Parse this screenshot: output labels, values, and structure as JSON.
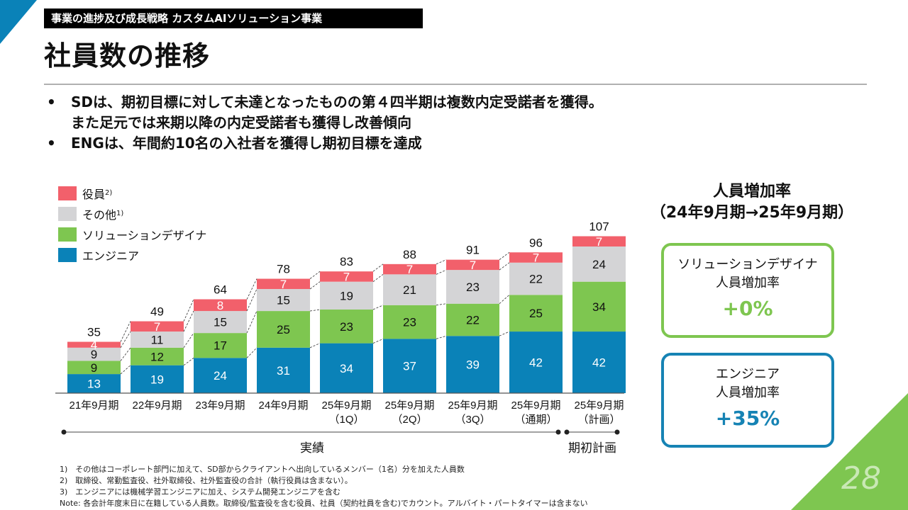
{
  "header": {
    "section": "事業の進捗及び成長戦略 カスタムAIソリューション事業",
    "title": "社員数の推移"
  },
  "bullets": [
    {
      "line1": "SDは、期初目標に対して未達となったものの第４四半期は複数内定受諾者を獲得。",
      "line2": "また足元では来期以降の内定受諾者も獲得し改善傾向"
    },
    {
      "line1": "ENGは、年間約10名の入社者を獲得し期初目標を達成",
      "line2": ""
    }
  ],
  "colors": {
    "executives": "#f2606b",
    "others": "#d4d4d6",
    "solution_designer": "#7ec650",
    "engineer": "#0a82b8",
    "brand_blue": "#1683b4",
    "brand_green": "#7ec650"
  },
  "chart_data": {
    "type": "bar",
    "stacked": true,
    "categories": [
      [
        "21年9月期",
        ""
      ],
      [
        "22年9月期",
        ""
      ],
      [
        "23年9月期",
        ""
      ],
      [
        "24年9月期",
        ""
      ],
      [
        "25年9月期",
        "（1Q）"
      ],
      [
        "25年9月期",
        "（2Q）"
      ],
      [
        "25年9月期",
        "（3Q）"
      ],
      [
        "25年9月期",
        "（通期）"
      ],
      [
        "25年9月期",
        "（計画）"
      ]
    ],
    "series": [
      {
        "name": "エンジニア",
        "sup": "",
        "key": "engineer",
        "values": [
          13,
          19,
          24,
          31,
          34,
          37,
          39,
          42,
          42
        ]
      },
      {
        "name": "ソリューションデザイナ",
        "sup": "",
        "key": "solution_designer",
        "values": [
          9,
          12,
          17,
          25,
          23,
          23,
          22,
          25,
          34
        ]
      },
      {
        "name": "その他",
        "sup": "1)",
        "key": "others",
        "values": [
          9,
          11,
          15,
          15,
          19,
          21,
          23,
          22,
          24
        ]
      },
      {
        "name": "役員",
        "sup": "2)",
        "key": "executives",
        "values": [
          4,
          7,
          8,
          7,
          7,
          7,
          7,
          7,
          7
        ]
      }
    ],
    "totals": [
      35,
      49,
      64,
      78,
      83,
      88,
      91,
      96,
      107
    ],
    "ylim": [
      0,
      110
    ],
    "grid": false,
    "legend_position": "top-left",
    "connectors": "dashed lines between consecutive actual bars",
    "periods": [
      {
        "label": "実績",
        "from": 0,
        "to": 7
      },
      {
        "label": "期初計画",
        "from": 8,
        "to": 8
      }
    ]
  },
  "rates": {
    "title_line1": "人員増加率",
    "title_line2": "（24年9月期→25年9月期）",
    "cards": [
      {
        "label_line1": "ソリューションデザイナ",
        "label_line2": "人員増加率",
        "value": "+0%"
      },
      {
        "label_line1": "エンジニア",
        "label_line2": "人員増加率",
        "value": "+35%"
      }
    ]
  },
  "footnotes": [
    "1)　その他はコーポレート部門に加えて、SD部からクライアントへ出向しているメンバー（1名）分を加えた人員数",
    "2)　取締役、常勤監査役、社外取締役、社外監査役の合計（執行役員は含まない）。",
    "3)　エンジニアには機械学習エンジニアに加え、システム開発エンジニアを含む",
    "Note: 各会計年度末日に在籍している人員数。取締役/監査役を含む役員、社員（契約社員を含む)でカウント。アルバイト・パートタイマーは含まない"
  ],
  "page_number": "28"
}
